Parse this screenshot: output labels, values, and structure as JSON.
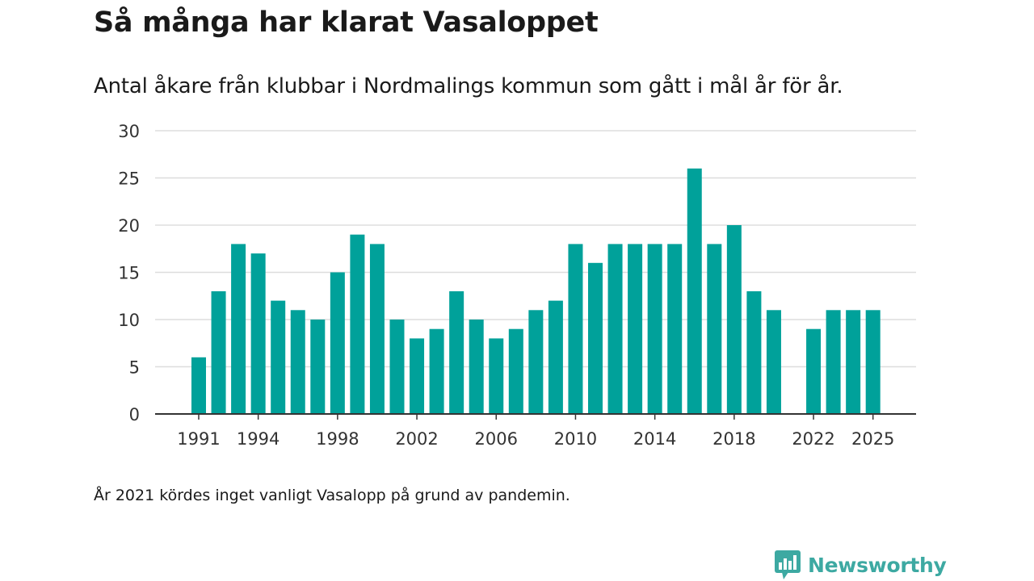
{
  "title": "Så många har klarat Vasaloppet",
  "subtitle": "Antal åkare från klubbar i Nordmalings kommun som gått i mål år för år.",
  "note": "År 2021 kördes inget vanligt Vasalopp på grund av pandemin.",
  "brand": {
    "name": "Newsworthy",
    "color": "#3da9a2"
  },
  "colors": {
    "bar": "#00a19a",
    "grid": "#dddddd",
    "axis": "#333333"
  },
  "chart_data": {
    "type": "bar",
    "title": "Så många har klarat Vasaloppet",
    "xlabel": "",
    "ylabel": "",
    "ylim": [
      0,
      30
    ],
    "yticks": [
      0,
      5,
      10,
      15,
      20,
      25,
      30
    ],
    "xtick_labels": [
      "1991",
      "1994",
      "1998",
      "2002",
      "2006",
      "2010",
      "2014",
      "2018",
      "2022",
      "2025"
    ],
    "grid": true,
    "categories": [
      "1991",
      "1992",
      "1993",
      "1994",
      "1995",
      "1996",
      "1997",
      "1998",
      "1999",
      "2000",
      "2001",
      "2002",
      "2003",
      "2004",
      "2005",
      "2006",
      "2007",
      "2008",
      "2009",
      "2010",
      "2011",
      "2012",
      "2013",
      "2014",
      "2015",
      "2016",
      "2017",
      "2018",
      "2019",
      "2020",
      "2021",
      "2022",
      "2023",
      "2024",
      "2025"
    ],
    "values": [
      6,
      13,
      18,
      17,
      12,
      11,
      10,
      15,
      19,
      18,
      10,
      8,
      9,
      13,
      10,
      8,
      9,
      11,
      12,
      18,
      16,
      18,
      18,
      18,
      18,
      26,
      18,
      20,
      13,
      11,
      null,
      9,
      11,
      11,
      11
    ]
  }
}
